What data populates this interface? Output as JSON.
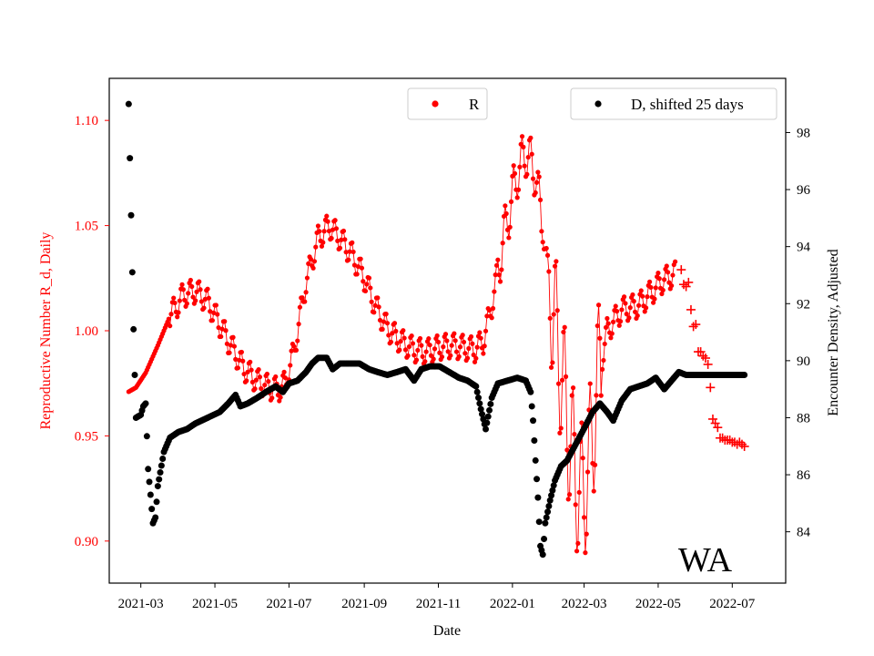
{
  "chart_data": {
    "type": "scatter",
    "region_label": "WA",
    "xlabel": "Date",
    "ylabel_left": "Reproductive Number R_d, Daily",
    "ylabel_right": "Encounter Density, Adjusted",
    "x_range": [
      "2021-02-03",
      "2022-08-14"
    ],
    "ylim_left": [
      0.88,
      1.12
    ],
    "ylim_right": [
      82.2,
      99.9
    ],
    "x_ticks": [
      "2021-03",
      "2021-05",
      "2021-07",
      "2021-09",
      "2021-11",
      "2022-01",
      "2022-03",
      "2022-05",
      "2022-07"
    ],
    "y_ticks_left": [
      "0.90",
      "0.95",
      "1.00",
      "1.05",
      "1.10"
    ],
    "y_ticks_right": [
      "84",
      "86",
      "88",
      "90",
      "92",
      "94",
      "96",
      "98"
    ],
    "colors": {
      "R": "#ff0000",
      "D": "#000000",
      "left_axis": "#ff0000",
      "right_axis": "#000000"
    },
    "legend": [
      {
        "label": "R",
        "color": "#ff0000",
        "placement": "top-center"
      },
      {
        "label": "D, shifted 25 days",
        "color": "#000000",
        "placement": "top-right"
      }
    ],
    "series": [
      {
        "name": "R",
        "axis": "left",
        "marker": "dot",
        "oscillation": [
          {
            "from": "2021-03-25",
            "to": "2022-05-15",
            "amplitude": 0.006
          },
          {
            "from": "2021-12-20",
            "to": "2022-01-25",
            "amplitude": 0.012
          },
          {
            "from": "2022-02-01",
            "to": "2022-03-15",
            "amplitude": 0.035
          }
        ],
        "points": [
          [
            "2021-02-19",
            0.971
          ],
          [
            "2021-02-25",
            0.973
          ],
          [
            "2021-03-05",
            0.98
          ],
          [
            "2021-03-15",
            0.993
          ],
          [
            "2021-03-25",
            1.007
          ],
          [
            "2021-04-05",
            1.017
          ],
          [
            "2021-04-15",
            1.019
          ],
          [
            "2021-04-25",
            1.014
          ],
          [
            "2021-05-05",
            1.003
          ],
          [
            "2021-05-15",
            0.992
          ],
          [
            "2021-05-25",
            0.982
          ],
          [
            "2021-06-05",
            0.976
          ],
          [
            "2021-06-15",
            0.973
          ],
          [
            "2021-06-22",
            0.972
          ],
          [
            "2021-06-28",
            0.975
          ],
          [
            "2021-07-05",
            0.99
          ],
          [
            "2021-07-15",
            1.023
          ],
          [
            "2021-07-25",
            1.044
          ],
          [
            "2021-08-03",
            1.05
          ],
          [
            "2021-08-12",
            1.044
          ],
          [
            "2021-08-22",
            1.036
          ],
          [
            "2021-09-01",
            1.025
          ],
          [
            "2021-09-10",
            1.012
          ],
          [
            "2021-09-20",
            1.001
          ],
          [
            "2021-10-01",
            0.995
          ],
          [
            "2021-10-12",
            0.991
          ],
          [
            "2021-10-22",
            0.99
          ],
          [
            "2021-11-01",
            0.992
          ],
          [
            "2021-11-12",
            0.993
          ],
          [
            "2021-11-22",
            0.992
          ],
          [
            "2021-12-01",
            0.991
          ],
          [
            "2021-12-08",
            0.995
          ],
          [
            "2021-12-15",
            1.012
          ],
          [
            "2021-12-25",
            1.045
          ],
          [
            "2022-01-05",
            1.075
          ],
          [
            "2022-01-12",
            1.085
          ],
          [
            "2022-01-20",
            1.075
          ],
          [
            "2022-01-30",
            1.03
          ],
          [
            "2022-02-08",
            0.99
          ],
          [
            "2022-02-18",
            0.945
          ],
          [
            "2022-02-26",
            0.92
          ],
          [
            "2022-03-05",
            0.935
          ],
          [
            "2022-03-12",
            0.975
          ],
          [
            "2022-03-20",
            1.0
          ],
          [
            "2022-04-01",
            1.01
          ],
          [
            "2022-04-15",
            1.012
          ],
          [
            "2022-04-25",
            1.018
          ],
          [
            "2022-05-05",
            1.024
          ],
          [
            "2022-05-15",
            1.027
          ]
        ]
      },
      {
        "name": "R_forecast",
        "axis": "left",
        "marker": "plus",
        "points": [
          [
            "2022-05-20",
            1.029
          ],
          [
            "2022-05-22",
            1.022
          ],
          [
            "2022-05-24",
            1.021
          ],
          [
            "2022-05-26",
            1.023
          ],
          [
            "2022-05-28",
            1.01
          ],
          [
            "2022-05-30",
            1.002
          ],
          [
            "2022-06-01",
            1.003
          ],
          [
            "2022-06-03",
            0.99
          ],
          [
            "2022-06-05",
            0.99
          ],
          [
            "2022-06-07",
            0.988
          ],
          [
            "2022-06-09",
            0.987
          ],
          [
            "2022-06-11",
            0.984
          ],
          [
            "2022-06-13",
            0.973
          ],
          [
            "2022-06-15",
            0.958
          ],
          [
            "2022-06-17",
            0.956
          ],
          [
            "2022-06-19",
            0.954
          ],
          [
            "2022-06-21",
            0.949
          ],
          [
            "2022-06-23",
            0.949
          ],
          [
            "2022-06-25",
            0.948
          ],
          [
            "2022-06-27",
            0.948
          ],
          [
            "2022-06-29",
            0.948
          ],
          [
            "2022-07-01",
            0.947
          ],
          [
            "2022-07-03",
            0.947
          ],
          [
            "2022-07-05",
            0.946
          ],
          [
            "2022-07-07",
            0.947
          ],
          [
            "2022-07-09",
            0.946
          ],
          [
            "2022-07-11",
            0.945
          ]
        ]
      },
      {
        "name": "D, shifted 25 days",
        "axis": "right",
        "marker": "dot",
        "points": [
          [
            "2021-02-19",
            99.0
          ],
          [
            "2021-02-20",
            97.1
          ],
          [
            "2021-02-21",
            95.1
          ],
          [
            "2021-02-22",
            93.1
          ],
          [
            "2021-02-23",
            91.1
          ],
          [
            "2021-02-24",
            89.5
          ],
          [
            "2021-02-25",
            88.0
          ],
          [
            "2021-03-01",
            88.1
          ],
          [
            "2021-03-03",
            88.4
          ],
          [
            "2021-03-05",
            88.5
          ],
          [
            "2021-03-07",
            86.2
          ],
          [
            "2021-03-09",
            85.3
          ],
          [
            "2021-03-11",
            84.3
          ],
          [
            "2021-03-13",
            84.5
          ],
          [
            "2021-03-15",
            85.6
          ],
          [
            "2021-03-20",
            86.8
          ],
          [
            "2021-03-25",
            87.3
          ],
          [
            "2021-04-01",
            87.5
          ],
          [
            "2021-04-08",
            87.6
          ],
          [
            "2021-04-15",
            87.8
          ],
          [
            "2021-04-25",
            88.0
          ],
          [
            "2021-05-05",
            88.2
          ],
          [
            "2021-05-12",
            88.5
          ],
          [
            "2021-05-18",
            88.8
          ],
          [
            "2021-05-22",
            88.4
          ],
          [
            "2021-05-28",
            88.5
          ],
          [
            "2021-06-05",
            88.7
          ],
          [
            "2021-06-12",
            88.9
          ],
          [
            "2021-06-20",
            89.1
          ],
          [
            "2021-06-26",
            88.9
          ],
          [
            "2021-07-01",
            89.2
          ],
          [
            "2021-07-08",
            89.3
          ],
          [
            "2021-07-15",
            89.6
          ],
          [
            "2021-07-20",
            89.9
          ],
          [
            "2021-07-25",
            90.1
          ],
          [
            "2021-08-01",
            90.1
          ],
          [
            "2021-08-06",
            89.7
          ],
          [
            "2021-08-12",
            89.9
          ],
          [
            "2021-08-20",
            89.9
          ],
          [
            "2021-08-28",
            89.9
          ],
          [
            "2021-09-05",
            89.7
          ],
          [
            "2021-09-12",
            89.6
          ],
          [
            "2021-09-20",
            89.5
          ],
          [
            "2021-09-28",
            89.6
          ],
          [
            "2021-10-05",
            89.7
          ],
          [
            "2021-10-12",
            89.3
          ],
          [
            "2021-10-18",
            89.7
          ],
          [
            "2021-10-25",
            89.8
          ],
          [
            "2021-11-02",
            89.8
          ],
          [
            "2021-11-10",
            89.6
          ],
          [
            "2021-11-18",
            89.4
          ],
          [
            "2021-11-25",
            89.3
          ],
          [
            "2021-12-02",
            89.1
          ],
          [
            "2021-12-06",
            88.3
          ],
          [
            "2021-12-10",
            87.6
          ],
          [
            "2021-12-15",
            88.7
          ],
          [
            "2021-12-20",
            89.2
          ],
          [
            "2021-12-28",
            89.3
          ],
          [
            "2022-01-05",
            89.4
          ],
          [
            "2022-01-12",
            89.3
          ],
          [
            "2022-01-16",
            88.9
          ],
          [
            "2022-01-18",
            87.9
          ],
          [
            "2022-01-20",
            86.5
          ],
          [
            "2022-01-22",
            85.2
          ],
          [
            "2022-01-24",
            83.5
          ],
          [
            "2022-01-26",
            83.2
          ],
          [
            "2022-01-28",
            84.3
          ],
          [
            "2022-02-01",
            85.1
          ],
          [
            "2022-02-05",
            85.8
          ],
          [
            "2022-02-10",
            86.3
          ],
          [
            "2022-02-15",
            86.5
          ],
          [
            "2022-02-20",
            86.9
          ],
          [
            "2022-02-25",
            87.3
          ],
          [
            "2022-03-02",
            87.7
          ],
          [
            "2022-03-08",
            88.2
          ],
          [
            "2022-03-14",
            88.5
          ],
          [
            "2022-03-20",
            88.2
          ],
          [
            "2022-03-25",
            87.9
          ],
          [
            "2022-04-01",
            88.6
          ],
          [
            "2022-04-08",
            89.0
          ],
          [
            "2022-04-15",
            89.1
          ],
          [
            "2022-04-22",
            89.2
          ],
          [
            "2022-04-29",
            89.4
          ],
          [
            "2022-05-06",
            89.0
          ],
          [
            "2022-05-12",
            89.3
          ],
          [
            "2022-05-18",
            89.6
          ],
          [
            "2022-05-24",
            89.5
          ],
          [
            "2022-06-01",
            89.5
          ],
          [
            "2022-06-10",
            89.5
          ],
          [
            "2022-06-20",
            89.5
          ],
          [
            "2022-07-01",
            89.5
          ],
          [
            "2022-07-11",
            89.5
          ]
        ]
      }
    ]
  }
}
